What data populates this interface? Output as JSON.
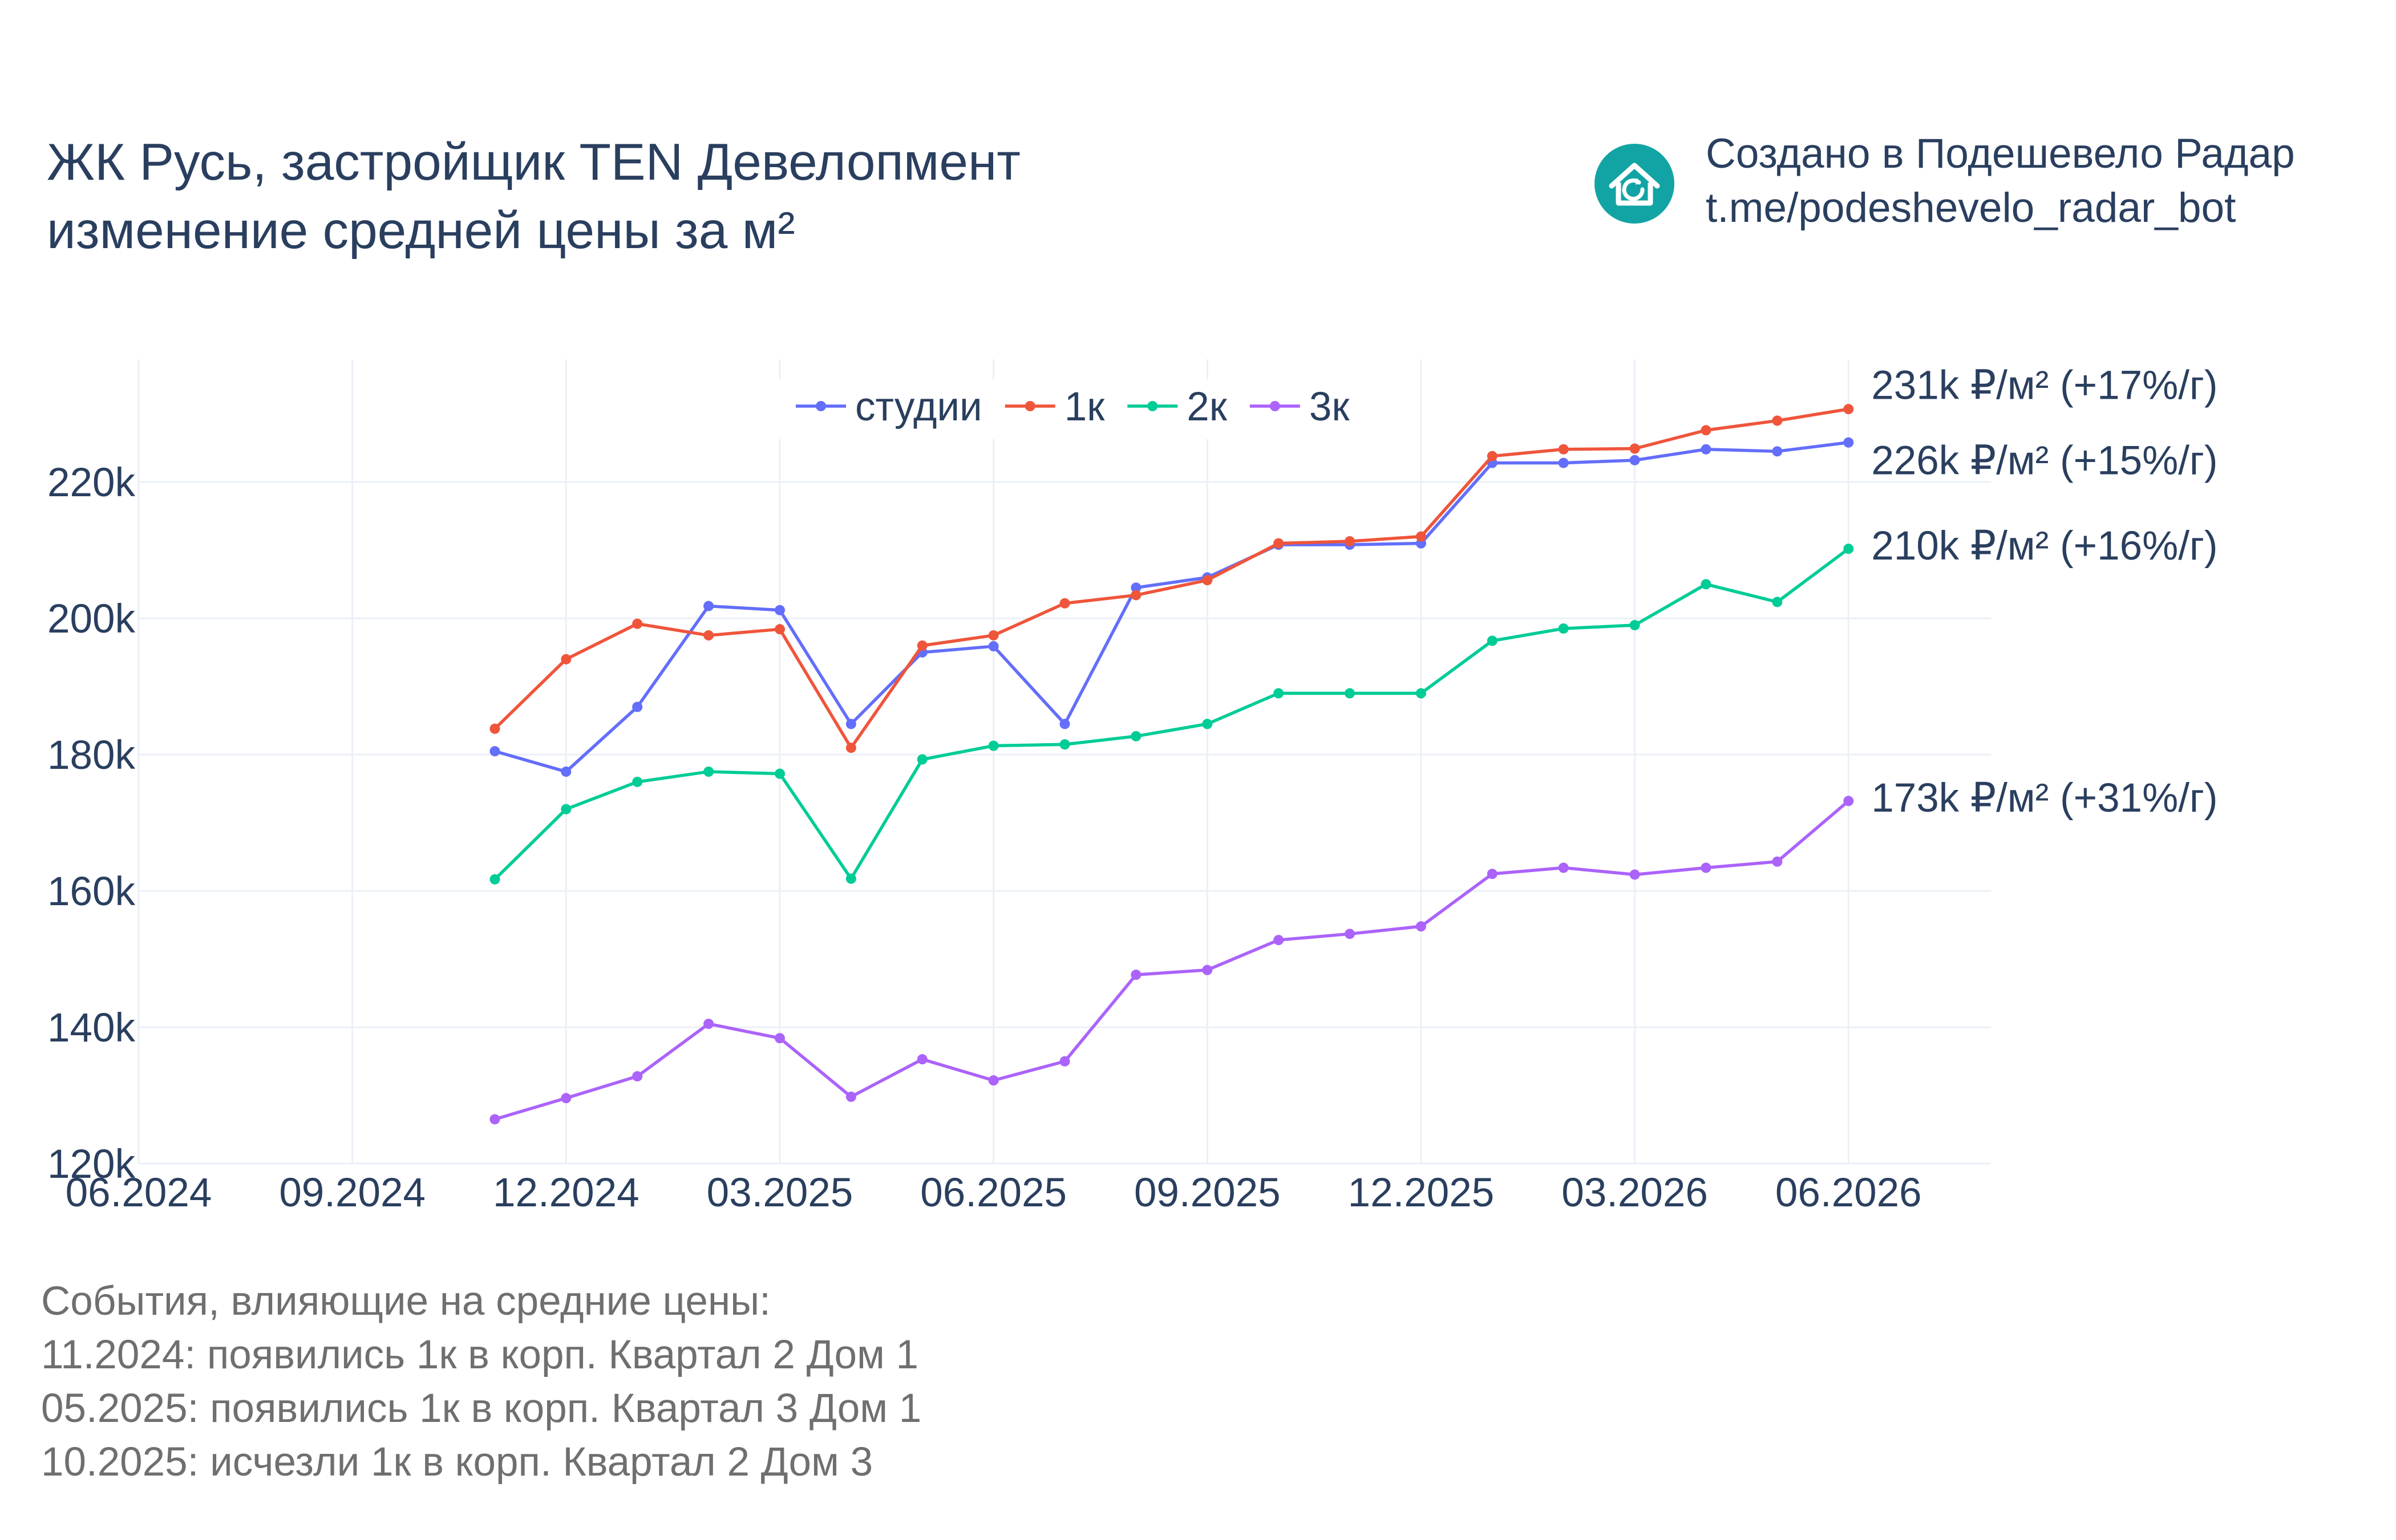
{
  "title": {
    "line1": "ЖК Русь, застройщик TEN Девелопмент",
    "line2": "изменение средней цены за м²"
  },
  "credit": {
    "logo_icon": "house-refresh-icon",
    "line1": "Создано в Подешевело Радар",
    "line2": "t.me/podeshevelo_radar_bot",
    "logo_color": "#12a4a4"
  },
  "events": {
    "header": "События, влияющие на средние цены:",
    "items": [
      "11.2024: появились 1к в корп. Квартал 2 Дом 1",
      "05.2025: появились 1к в корп. Квартал 3 Дом 1",
      "10.2025: исчезли 1к в корп. Квартал 2 Дом 3"
    ]
  },
  "chart_data": {
    "type": "line",
    "x": [
      "2024-11",
      "2024-12",
      "2025-01",
      "2025-02",
      "2025-03",
      "2025-04",
      "2025-05",
      "2025-06",
      "2025-07",
      "2025-08",
      "2025-09",
      "2025-10",
      "2025-11",
      "2025-12",
      "2026-01",
      "2026-02",
      "2026-03",
      "2026-04",
      "2026-05",
      "2026-06"
    ],
    "x_ticks": [
      "06.2024",
      "09.2024",
      "12.2024",
      "03.2025",
      "06.2025",
      "09.2025",
      "12.2025",
      "03.2026",
      "06.2026"
    ],
    "xlim": [
      "2024-06",
      "2026-08"
    ],
    "y_ticks": [
      "120k",
      "140k",
      "160k",
      "180k",
      "200k",
      "220k"
    ],
    "ylim": [
      120000,
      238000
    ],
    "grid": true,
    "legend_position": "top-center",
    "series": [
      {
        "name": "студии",
        "color": "#636efa",
        "end_label": "226k ₽/м² (+15%/г)",
        "values": [
          180500,
          177500,
          187000,
          201800,
          201200,
          184500,
          195000,
          195900,
          184500,
          204500,
          206000,
          210800,
          210800,
          211000,
          222800,
          222800,
          223200,
          224800,
          224500,
          225800
        ]
      },
      {
        "name": "1к",
        "color": "#ef553b",
        "end_label": "231k ₽/м² (+17%/г)",
        "values": [
          183800,
          194000,
          199200,
          197500,
          198400,
          181000,
          196000,
          197500,
          202200,
          203400,
          205600,
          211000,
          211300,
          212000,
          223800,
          224800,
          224900,
          227600,
          229000,
          230700
        ]
      },
      {
        "name": "2к",
        "color": "#00cc96",
        "end_label": "210k ₽/м² (+16%/г)",
        "values": [
          161700,
          172000,
          176000,
          177500,
          177200,
          161800,
          179300,
          181300,
          181500,
          182700,
          184500,
          189000,
          189000,
          189000,
          196700,
          198500,
          199000,
          205000,
          202400,
          210200
        ]
      },
      {
        "name": "3к",
        "color": "#ab63fa",
        "end_label": "173k ₽/м² (+31%/г)",
        "values": [
          126500,
          129600,
          132800,
          140500,
          138400,
          129800,
          135300,
          132200,
          135000,
          147700,
          148400,
          152800,
          153700,
          154800,
          162500,
          163400,
          162400,
          163400,
          164300,
          173200
        ]
      }
    ]
  }
}
